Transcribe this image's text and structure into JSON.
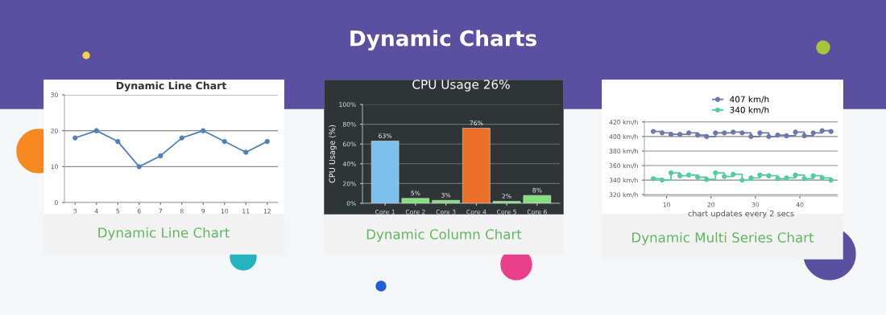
{
  "chart_data": [
    {
      "type": "other",
      "title": "Dynamic Charts"
    },
    {
      "type": "line",
      "title": "Dynamic Line Chart",
      "x": [
        3,
        4,
        5,
        6,
        7,
        8,
        9,
        10,
        11,
        12
      ],
      "series": [
        {
          "color": "#4f81bc",
          "values": [
            18,
            20,
            17,
            10,
            13,
            18,
            20,
            17,
            14,
            17
          ]
        }
      ],
      "xlim": [
        2.5,
        12.5
      ],
      "xticks": [
        3,
        4,
        5,
        6,
        7,
        8,
        9,
        10,
        11,
        12
      ],
      "ylim": [
        0,
        30
      ],
      "yticks": [
        0,
        10,
        20,
        30
      ],
      "grid": "y",
      "marker": "circle",
      "annotations": [
        "Dynamic Line Chart"
      ]
    },
    {
      "type": "bar",
      "title": "CPU Usage 26%",
      "ylabel": "CPU Usage (%)",
      "categories": [
        "Core 1",
        "Core 2",
        "Core 3",
        "Core 4",
        "Core 5",
        "Core 6"
      ],
      "values": [
        63,
        5,
        3,
        76,
        2,
        8
      ],
      "colors": [
        "#7dc0ee",
        "#86e07e",
        "#86e07e",
        "#ec7028",
        "#86e07e",
        "#86e07e"
      ],
      "value_labels": [
        "63%",
        "5%",
        "3%",
        "76%",
        "2%",
        "8%"
      ],
      "ylim": [
        0,
        100
      ],
      "yticks": [
        {
          "value": 0,
          "label": "0%"
        },
        {
          "value": 20,
          "label": "20%"
        },
        {
          "value": 40,
          "label": "40%"
        },
        {
          "value": 60,
          "label": "60%"
        },
        {
          "value": 80,
          "label": "80%"
        },
        {
          "value": 100,
          "label": "100%"
        }
      ],
      "grid": "y",
      "annotations": [
        "Dynamic Column Chart"
      ]
    },
    {
      "type": "step",
      "xlabel": "chart updates every 2 secs",
      "x": [
        7,
        9,
        11,
        13,
        15,
        17,
        19,
        21,
        23,
        25,
        27,
        29,
        31,
        33,
        35,
        37,
        39,
        41,
        43,
        45,
        47
      ],
      "series": [
        {
          "name": "407 km/h",
          "color": "#6d78ad",
          "values": [
            407,
            405,
            403,
            403,
            405,
            402,
            400,
            405,
            405,
            406,
            405,
            400,
            405,
            400,
            402,
            401,
            406,
            401,
            405,
            408,
            407
          ]
        },
        {
          "name": "340 km/h",
          "color": "#51cda0",
          "values": [
            342,
            340,
            350,
            346,
            347,
            344,
            341,
            350,
            345,
            348,
            340,
            343,
            347,
            346,
            342,
            343,
            347,
            342,
            346,
            343,
            340
          ]
        }
      ],
      "xlim": [
        5,
        48.5
      ],
      "xticks": [
        10,
        20,
        30,
        40
      ],
      "ylim": [
        318,
        422
      ],
      "yticks": [
        {
          "value": 320,
          "label": "320 km/h"
        },
        {
          "value": 340,
          "label": "340 km/h"
        },
        {
          "value": 360,
          "label": "360 km/h"
        },
        {
          "value": 380,
          "label": "380 km/h"
        },
        {
          "value": 400,
          "label": "400 km/h"
        },
        {
          "value": 420,
          "label": "420 km/h"
        }
      ],
      "grid": "y",
      "marker": "circle",
      "legend": "top",
      "annotations": [
        "Dynamic Multi Series Chart"
      ]
    }
  ]
}
